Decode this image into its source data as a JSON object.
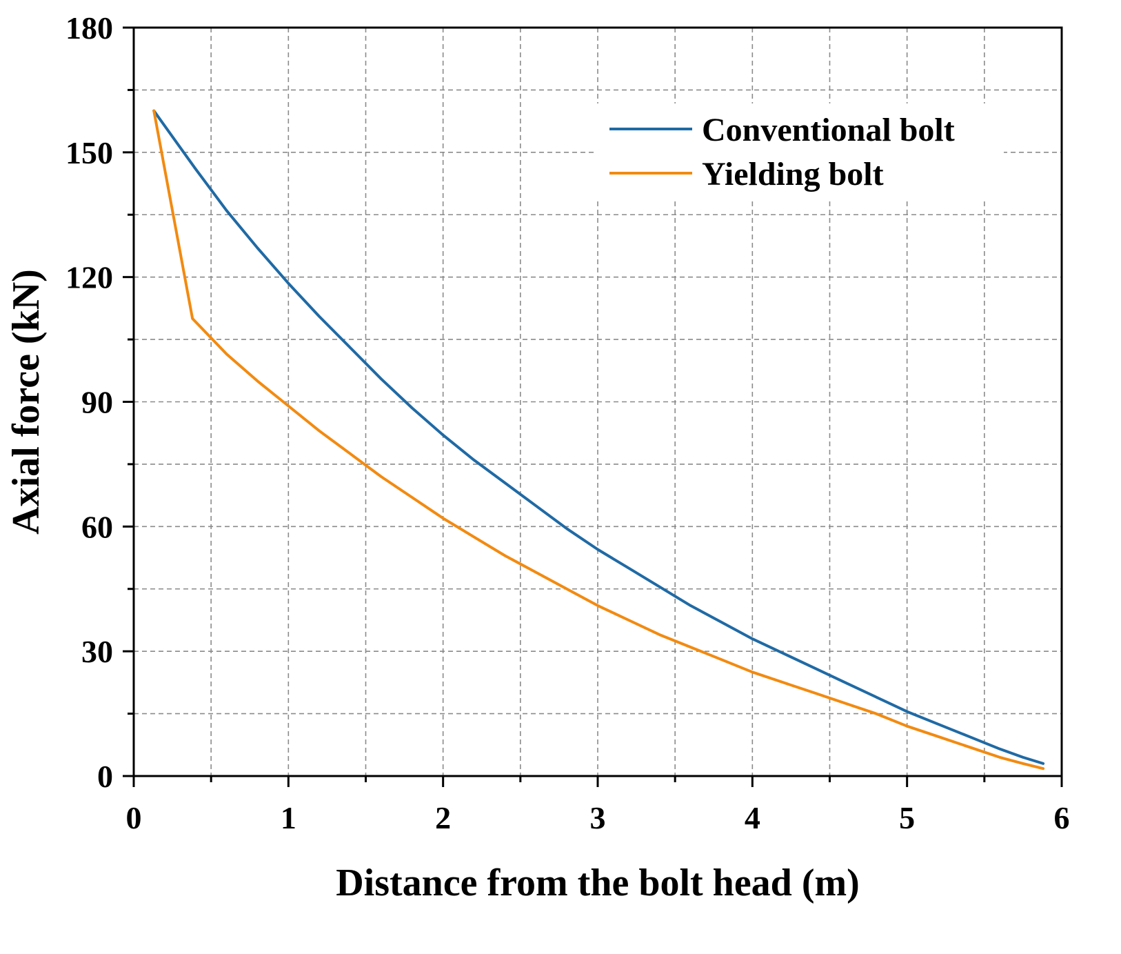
{
  "chart_data": {
    "type": "line",
    "title": "",
    "xlabel": "Distance from the bolt head (m)",
    "ylabel": "Axial force (kN)",
    "xlim": [
      0,
      6
    ],
    "ylim": [
      0,
      180
    ],
    "x_ticks": [
      0,
      1,
      2,
      3,
      4,
      5,
      6
    ],
    "x_tick_labels": [
      "0",
      "1",
      "2",
      "3",
      "4",
      "5",
      "6"
    ],
    "x_minor_ticks": [
      0.5,
      1.5,
      2.5,
      3.5,
      4.5,
      5.5
    ],
    "y_ticks": [
      0,
      30,
      60,
      90,
      120,
      150,
      180
    ],
    "y_tick_labels": [
      "0",
      "30",
      "60",
      "90",
      "120",
      "150",
      "180"
    ],
    "y_minor_ticks": [
      15,
      45,
      75,
      105,
      135,
      165
    ],
    "grid": true,
    "legend_position": "top-right",
    "series": [
      {
        "name": "Conventional bolt",
        "color": "#1f6aa5",
        "points": [
          [
            0.13,
            160
          ],
          [
            0.4,
            146
          ],
          [
            0.6,
            136
          ],
          [
            0.8,
            127
          ],
          [
            1.0,
            118.5
          ],
          [
            1.2,
            110.5
          ],
          [
            1.4,
            103
          ],
          [
            1.6,
            95.5
          ],
          [
            1.8,
            88.5
          ],
          [
            2.0,
            82
          ],
          [
            2.2,
            76
          ],
          [
            2.4,
            70.5
          ],
          [
            2.6,
            65
          ],
          [
            2.8,
            59.5
          ],
          [
            3.0,
            54.5
          ],
          [
            3.2,
            50
          ],
          [
            3.4,
            45.5
          ],
          [
            3.6,
            41
          ],
          [
            3.8,
            37
          ],
          [
            4.0,
            33
          ],
          [
            4.2,
            29.5
          ],
          [
            4.4,
            26
          ],
          [
            4.6,
            22.5
          ],
          [
            4.8,
            19
          ],
          [
            5.0,
            15.5
          ],
          [
            5.2,
            12.5
          ],
          [
            5.4,
            9.5
          ],
          [
            5.6,
            6.5
          ],
          [
            5.75,
            4.5
          ],
          [
            5.88,
            3
          ]
        ]
      },
      {
        "name": "Yielding bolt",
        "color": "#f28a10",
        "points": [
          [
            0.13,
            160
          ],
          [
            0.38,
            110
          ],
          [
            0.6,
            101.5
          ],
          [
            0.8,
            95
          ],
          [
            1.0,
            89
          ],
          [
            1.2,
            83
          ],
          [
            1.4,
            77.5
          ],
          [
            1.6,
            72
          ],
          [
            1.8,
            67
          ],
          [
            2.0,
            62
          ],
          [
            2.2,
            57.5
          ],
          [
            2.4,
            53
          ],
          [
            2.6,
            49
          ],
          [
            2.8,
            45
          ],
          [
            3.0,
            41
          ],
          [
            3.2,
            37.5
          ],
          [
            3.4,
            34
          ],
          [
            3.6,
            31
          ],
          [
            3.8,
            28
          ],
          [
            4.0,
            25
          ],
          [
            4.2,
            22.5
          ],
          [
            4.4,
            20
          ],
          [
            4.6,
            17.5
          ],
          [
            4.8,
            15
          ],
          [
            5.0,
            12
          ],
          [
            5.2,
            9.5
          ],
          [
            5.4,
            7
          ],
          [
            5.6,
            4.5
          ],
          [
            5.75,
            3
          ],
          [
            5.88,
            1.8
          ]
        ]
      }
    ]
  }
}
